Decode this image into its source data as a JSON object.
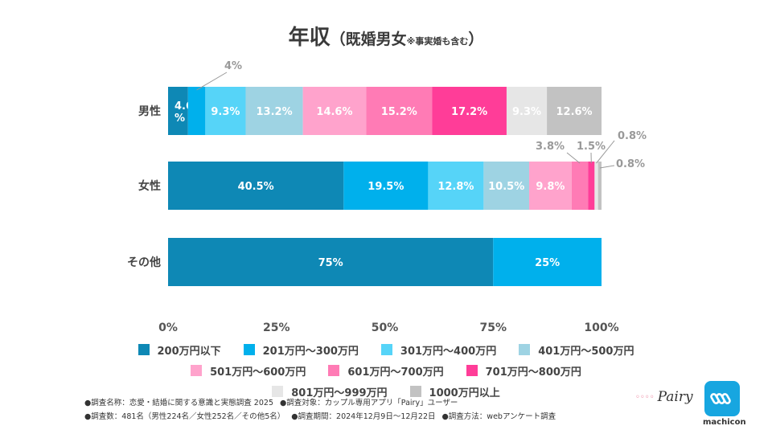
{
  "title": {
    "main": "年収",
    "paren": "（既婚男女",
    "note": "※事実婚も含む",
    "close": "）"
  },
  "chart_data": {
    "type": "bar",
    "orientation": "horizontal",
    "stacked": true,
    "categories": [
      "男性",
      "女性",
      "その他"
    ],
    "xlim": [
      0,
      100
    ],
    "ticks": [
      "0%",
      "25%",
      "50%",
      "75%",
      "100%"
    ],
    "series": [
      {
        "name": "200万円以下",
        "color": "#0e88b5",
        "values": [
          4.6,
          40.5,
          75
        ],
        "labels": [
          "4.6%",
          "40.5%",
          "75%"
        ]
      },
      {
        "name": "201万円～300万円",
        "color": "#00b0ec",
        "values": [
          4,
          19.5,
          25
        ],
        "labels": [
          "4%",
          "19.5%",
          "25%"
        ]
      },
      {
        "name": "301万円～400万円",
        "color": "#56d4f8",
        "values": [
          9.3,
          12.8,
          0
        ],
        "labels": [
          "9.3%",
          "12.8%",
          ""
        ]
      },
      {
        "name": "401万円～500万円",
        "color": "#9ed3e3",
        "values": [
          13.2,
          10.5,
          0
        ],
        "labels": [
          "13.2%",
          "10.5%",
          ""
        ]
      },
      {
        "name": "501万円～600万円",
        "color": "#ffa3cc",
        "values": [
          14.6,
          9.8,
          0
        ],
        "labels": [
          "14.6%",
          "9.8%",
          ""
        ]
      },
      {
        "name": "601万円～700万円",
        "color": "#ff7bb5",
        "values": [
          15.2,
          3.8,
          0
        ],
        "labels": [
          "15.2%",
          "3.8%",
          ""
        ]
      },
      {
        "name": "701万円～800万円",
        "color": "#ff3d98",
        "values": [
          17.2,
          1.5,
          0
        ],
        "labels": [
          "17.2%",
          "1.5%",
          ""
        ]
      },
      {
        "name": "801万円～999万円",
        "color": "#e6e6e6",
        "values": [
          9.3,
          0.8,
          0
        ],
        "labels": [
          "9.3%",
          "0.8%",
          ""
        ]
      },
      {
        "name": "1000万円以上",
        "color": "#c2c2c2",
        "values": [
          12.6,
          0.8,
          0
        ],
        "labels": [
          "12.6%",
          "0.8%",
          ""
        ]
      }
    ]
  },
  "footnotes": {
    "row1": [
      "●調査名称：恋愛・結婚に関する意識と実態調査 2025",
      "●調査対象：カップル専用アプリ「Pairy」ユーザー"
    ],
    "row2": [
      "●調査数：481名（男性224名／女性252名／その他5名）",
      "●調査期間：2024年12月9日～12月22日",
      "●調査方法：webアンケート調査"
    ]
  },
  "logos": {
    "pairy": "Pairy",
    "machicon": "machicon"
  }
}
